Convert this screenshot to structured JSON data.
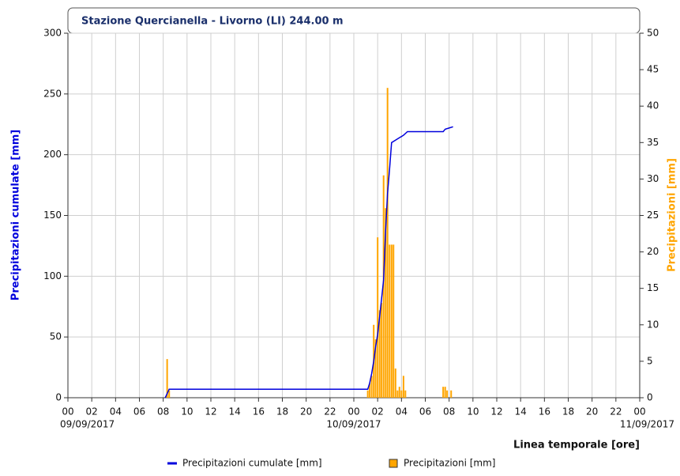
{
  "chart_data": {
    "type": "combo",
    "title": "Stazione Quercianella - Livorno (LI) 244.00 m",
    "y_label": "Precipitazioni cumulate [mm]",
    "y2_label": "Precipitazioni [mm]",
    "x_label": "Linea temporale [ore]",
    "xlim": [
      0,
      48
    ],
    "xticks": [
      {
        "value": 0,
        "label": "00"
      },
      {
        "value": 2,
        "label": "02"
      },
      {
        "value": 4,
        "label": "04"
      },
      {
        "value": 6,
        "label": "06"
      },
      {
        "value": 8,
        "label": "08"
      },
      {
        "value": 10,
        "label": "10"
      },
      {
        "value": 12,
        "label": "12"
      },
      {
        "value": 14,
        "label": "14"
      },
      {
        "value": 16,
        "label": "16"
      },
      {
        "value": 18,
        "label": "18"
      },
      {
        "value": 20,
        "label": "20"
      },
      {
        "value": 22,
        "label": "22"
      },
      {
        "value": 24,
        "label": "00"
      },
      {
        "value": 26,
        "label": "02"
      },
      {
        "value": 28,
        "label": "04"
      },
      {
        "value": 30,
        "label": "06"
      },
      {
        "value": 32,
        "label": "08"
      },
      {
        "value": 34,
        "label": "10"
      },
      {
        "value": 36,
        "label": "12"
      },
      {
        "value": 38,
        "label": "14"
      },
      {
        "value": 40,
        "label": "16"
      },
      {
        "value": 42,
        "label": "18"
      },
      {
        "value": 44,
        "label": "20"
      },
      {
        "value": 46,
        "label": "22"
      },
      {
        "value": 48,
        "label": "00"
      }
    ],
    "x_date_labels": [
      {
        "value": 0,
        "label": "09/09/2017"
      },
      {
        "value": 24,
        "label": "10/09/2017"
      },
      {
        "value": 48,
        "label": "11/09/2017"
      }
    ],
    "ylim": [
      0,
      300
    ],
    "yticks": [
      0,
      50,
      100,
      150,
      200,
      250,
      300
    ],
    "y2lim": [
      0,
      50
    ],
    "y2ticks": [
      0,
      5,
      10,
      15,
      20,
      25,
      30,
      35,
      40,
      45,
      50
    ],
    "grid": true,
    "series": [
      {
        "name": "Precipitazioni cumulate [mm]",
        "type": "line",
        "color": "#0000dd",
        "x": [
          8.17,
          8.5,
          25.17,
          25.33,
          25.5,
          25.67,
          25.83,
          26.0,
          26.17,
          26.5,
          26.67,
          26.83,
          27.0,
          27.17,
          27.5,
          27.83,
          28.17,
          28.5,
          31.5,
          31.67,
          32.0,
          32.33
        ],
        "values": [
          0,
          7,
          7,
          12,
          20,
          30,
          42,
          52,
          67,
          97,
          138,
          168,
          188,
          210,
          212,
          214,
          216,
          219,
          219,
          221,
          222,
          223
        ]
      },
      {
        "name": "Precipitazioni [mm]",
        "type": "bar",
        "axis": "y2",
        "color": "#ffa500",
        "x": [
          8.33,
          8.5,
          25.17,
          25.33,
          25.5,
          25.67,
          25.83,
          26.0,
          26.17,
          26.33,
          26.5,
          26.67,
          26.83,
          27.0,
          27.17,
          27.33,
          27.5,
          27.67,
          27.83,
          28.0,
          28.17,
          28.33,
          31.5,
          31.67,
          31.83,
          32.17
        ],
        "values": [
          5.3,
          1,
          1,
          2,
          3,
          10,
          8,
          22,
          12,
          13,
          30.5,
          26,
          42.5,
          21,
          21,
          21,
          4,
          1,
          1.5,
          1,
          3,
          1,
          1.5,
          1.5,
          1,
          1
        ]
      }
    ]
  }
}
